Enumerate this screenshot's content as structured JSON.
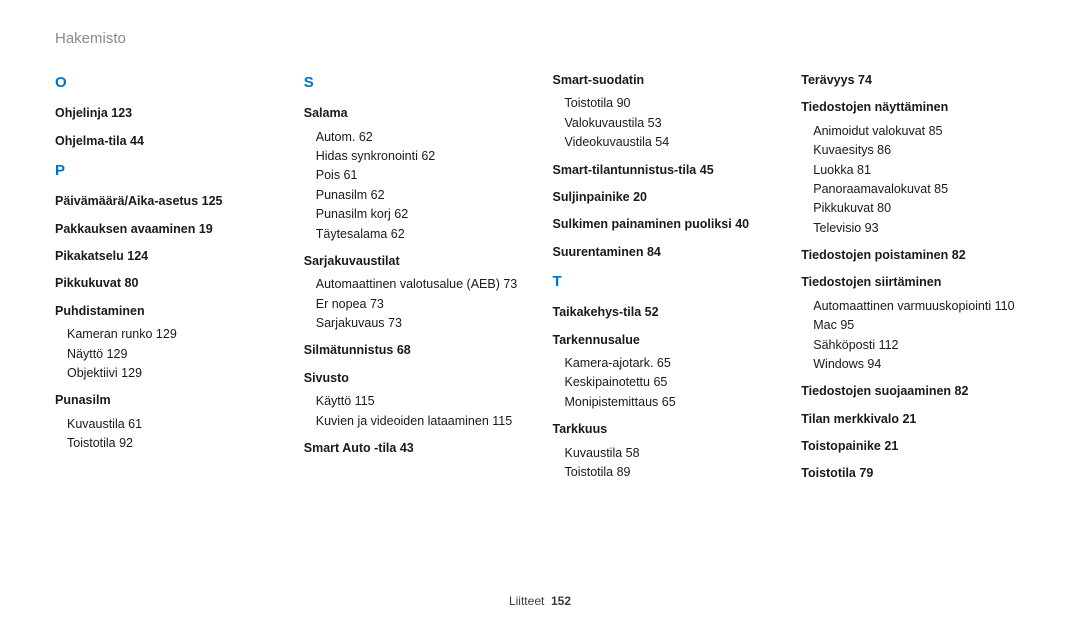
{
  "header": "Hakemisto",
  "footer": {
    "label": "Liitteet",
    "page": "152"
  },
  "accent_color": "#0071c5",
  "columns": [
    [
      {
        "type": "letter",
        "text": "O"
      },
      {
        "type": "entry",
        "term": "Ohjelinja",
        "page": "123"
      },
      {
        "type": "entry",
        "term": "Ohjelma-tila",
        "page": "44"
      },
      {
        "type": "letter",
        "text": "P"
      },
      {
        "type": "entry",
        "term": "Päivämäärä/Aika-asetus",
        "page": "125"
      },
      {
        "type": "entry",
        "term": "Pakkauksen avaaminen",
        "page": "19"
      },
      {
        "type": "entry",
        "term": "Pikakatselu",
        "page": "124"
      },
      {
        "type": "entry",
        "term": "Pikkukuvat",
        "page": "80"
      },
      {
        "type": "entry",
        "term": "Puhdistaminen",
        "subs": [
          {
            "text": "Kameran runko",
            "page": "129"
          },
          {
            "text": "Näyttö",
            "page": "129"
          },
          {
            "text": "Objektiivi",
            "page": "129"
          }
        ]
      },
      {
        "type": "entry",
        "term": "Punasilm",
        "subs": [
          {
            "text": "Kuvaustila",
            "page": "61"
          },
          {
            "text": "Toistotila",
            "page": "92"
          }
        ]
      }
    ],
    [
      {
        "type": "letter",
        "text": "S"
      },
      {
        "type": "entry",
        "term": "Salama",
        "subs": [
          {
            "text": "Autom.",
            "page": "62"
          },
          {
            "text": "Hidas synkronointi",
            "page": "62"
          },
          {
            "text": "Pois",
            "page": "61"
          },
          {
            "text": "Punasilm",
            "page": "62"
          },
          {
            "text": "Punasilm korj",
            "page": "62"
          },
          {
            "text": "Täytesalama",
            "page": "62"
          }
        ]
      },
      {
        "type": "entry",
        "term": "Sarjakuvaustilat",
        "subs": [
          {
            "text": "Automaattinen valotusalue (AEB)",
            "page": "73"
          },
          {
            "text": "Er nopea",
            "page": "73"
          },
          {
            "text": "Sarjakuvaus",
            "page": "73"
          }
        ]
      },
      {
        "type": "entry",
        "term": "Silmätunnistus",
        "page": "68"
      },
      {
        "type": "entry",
        "term": "Sivusto",
        "subs": [
          {
            "text": "Käyttö",
            "page": "115"
          },
          {
            "text": "Kuvien ja videoiden lataaminen",
            "page": "115"
          }
        ]
      },
      {
        "type": "entry",
        "term": "Smart Auto -tila",
        "page": "43"
      }
    ],
    [
      {
        "type": "entry",
        "term": "Smart-suodatin",
        "subs": [
          {
            "text": "Toistotila",
            "page": "90"
          },
          {
            "text": "Valokuvaustila",
            "page": "53"
          },
          {
            "text": "Videokuvaustila",
            "page": "54"
          }
        ]
      },
      {
        "type": "entry",
        "term": "Smart-tilantunnistus-tila",
        "page": "45"
      },
      {
        "type": "entry",
        "term": "Suljinpainike",
        "page": "20"
      },
      {
        "type": "entry",
        "term": "Sulkimen painaminen puoliksi",
        "page": "40"
      },
      {
        "type": "entry",
        "term": "Suurentaminen",
        "page": "84"
      },
      {
        "type": "letter",
        "text": "T"
      },
      {
        "type": "entry",
        "term": "Taikakehys-tila",
        "page": "52"
      },
      {
        "type": "entry",
        "term": "Tarkennusalue",
        "subs": [
          {
            "text": "Kamera-ajotark.",
            "page": "65"
          },
          {
            "text": "Keskipainotettu",
            "page": "65"
          },
          {
            "text": "Monipistemittaus",
            "page": "65"
          }
        ]
      },
      {
        "type": "entry",
        "term": "Tarkkuus",
        "subs": [
          {
            "text": "Kuvaustila",
            "page": "58"
          },
          {
            "text": "Toistotila",
            "page": "89"
          }
        ]
      }
    ],
    [
      {
        "type": "entry",
        "term": "Terävyys",
        "page": "74"
      },
      {
        "type": "entry",
        "term": "Tiedostojen näyttäminen",
        "subs": [
          {
            "text": "Animoidut valokuvat",
            "page": "85"
          },
          {
            "text": "Kuvaesitys",
            "page": "86"
          },
          {
            "text": "Luokka",
            "page": "81"
          },
          {
            "text": "Panoraamavalokuvat",
            "page": "85"
          },
          {
            "text": "Pikkukuvat",
            "page": "80"
          },
          {
            "text": "Televisio",
            "page": "93"
          }
        ]
      },
      {
        "type": "entry",
        "term": "Tiedostojen poistaminen",
        "page": "82"
      },
      {
        "type": "entry",
        "term": "Tiedostojen siirtäminen",
        "subs": [
          {
            "text": "Automaattinen varmuuskopiointi",
            "page": "110"
          },
          {
            "text": "Mac",
            "page": "95"
          },
          {
            "text": "Sähköposti",
            "page": "112"
          },
          {
            "text": "Windows",
            "page": "94"
          }
        ]
      },
      {
        "type": "entry",
        "term": "Tiedostojen suojaaminen",
        "page": "82"
      },
      {
        "type": "entry",
        "term": "Tilan merkkivalo",
        "page": "21"
      },
      {
        "type": "entry",
        "term": "Toistopainike",
        "page": "21"
      },
      {
        "type": "entry",
        "term": "Toistotila",
        "page": "79"
      }
    ]
  ]
}
